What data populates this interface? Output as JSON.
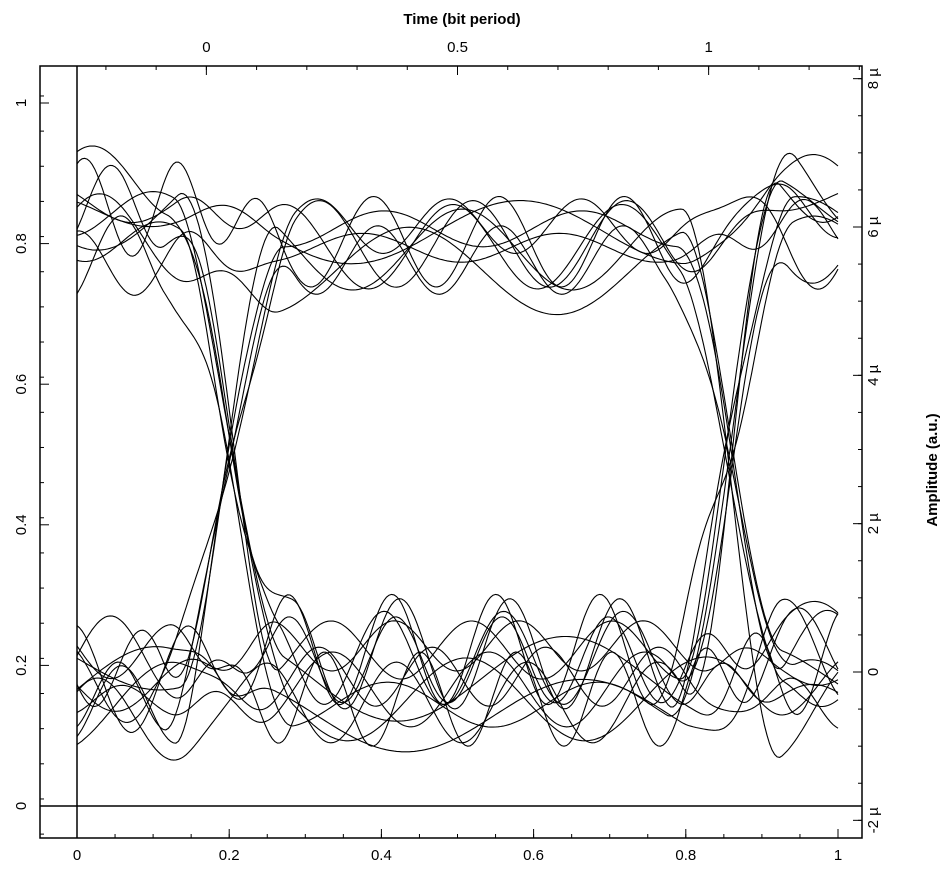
{
  "chart_data": {
    "type": "line",
    "subtype": "eye-diagram",
    "title": "",
    "x_top_label": "Time (bit period)",
    "y_right_label": "Amplitude (a.u.)",
    "xlim_bottom": [
      0,
      1
    ],
    "ylim_left": [
      0,
      1
    ],
    "x_bottom_ticks": [
      "0",
      "0.2",
      "0.4",
      "0.6",
      "0.8",
      "1"
    ],
    "y_left_ticks": [
      "0",
      "0.2",
      "0.4",
      "0.6",
      "0.8",
      "1"
    ],
    "x_top_ticks": [
      "0",
      "0.5",
      "1"
    ],
    "y_right_ticks": [
      "-2 µ",
      "0",
      "2 µ",
      "4 µ",
      "6 µ",
      "8 µ"
    ],
    "grid": false,
    "legend": "none",
    "line_color": "#000000",
    "eye_crossings_x": [
      0.2,
      0.86
    ],
    "crossing_level": 0.41,
    "high_level_band": [
      0.66,
      1.0
    ],
    "low_level_band": [
      0.0,
      0.35
    ],
    "series": [
      {
        "name": "",
        "x": [
          0,
          0.1,
          0.2,
          0.35,
          0.5,
          0.65,
          0.8,
          0.95,
          1.0
        ],
        "values": [
          0.8,
          0.82,
          0.8,
          0.82,
          0.8,
          0.81,
          0.8,
          0.82,
          0.8
        ]
      },
      {
        "name": "",
        "x": [
          0,
          0.1,
          0.2,
          0.35,
          0.5,
          0.65,
          0.8,
          0.95,
          1.0
        ],
        "values": [
          0.19,
          0.18,
          0.2,
          0.18,
          0.19,
          0.2,
          0.18,
          0.2,
          0.19
        ]
      },
      {
        "name": "",
        "x": [
          0,
          0.1,
          0.2,
          0.3,
          0.5,
          0.7,
          0.8,
          0.9,
          1.0
        ],
        "values": [
          0.82,
          0.82,
          0.41,
          0.15,
          0.2,
          0.22,
          0.41,
          0.78,
          0.82
        ]
      },
      {
        "name": "",
        "x": [
          0,
          0.1,
          0.2,
          0.3,
          0.5,
          0.7,
          0.8,
          0.9,
          1.0
        ],
        "values": [
          0.15,
          0.18,
          0.41,
          0.8,
          0.76,
          0.8,
          0.41,
          0.2,
          0.17
        ]
      },
      {
        "name": "",
        "x": [
          0,
          0.11,
          0.2,
          0.4,
          0.6,
          0.77,
          0.86,
          1.0
        ],
        "values": [
          0.1,
          0.0,
          0.41,
          1.0,
          0.75,
          0.0,
          0.41,
          0.84
        ]
      }
    ]
  }
}
